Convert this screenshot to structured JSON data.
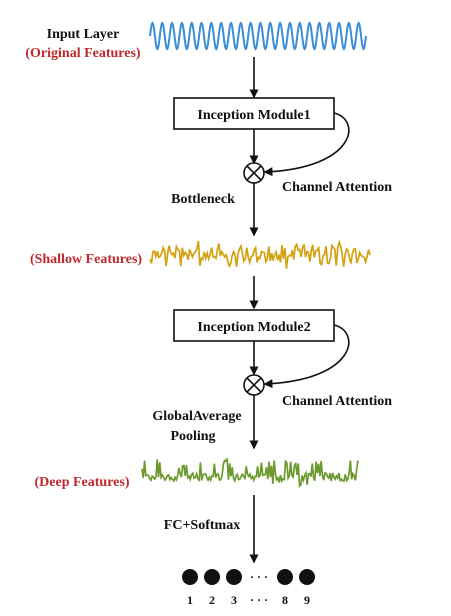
{
  "input": {
    "label_line1": "Input Layer",
    "label_line2": "(Original Features)"
  },
  "stage1": {
    "module_label": "Inception Module1",
    "attention_label": "Channel Attention",
    "transition_label": "Bottleneck"
  },
  "shallow": {
    "label": "(Shallow Features)"
  },
  "stage2": {
    "module_label": "Inception Module2",
    "attention_label": "Channel Attention",
    "transition_line1": "GlobalAverage",
    "transition_line2": "Pooling"
  },
  "deep": {
    "label": "(Deep Features)"
  },
  "classifier": {
    "label": "FC+Softmax",
    "nodes": [
      "1",
      "2",
      "3",
      "8",
      "9"
    ],
    "ellipsis": "· · ·"
  },
  "colors": {
    "label_red": "#c0282d",
    "wave_input": "#3a8ed6",
    "wave_shallow": "#d4a10f",
    "wave_deep": "#6d9a2e",
    "stroke": "#111111"
  }
}
